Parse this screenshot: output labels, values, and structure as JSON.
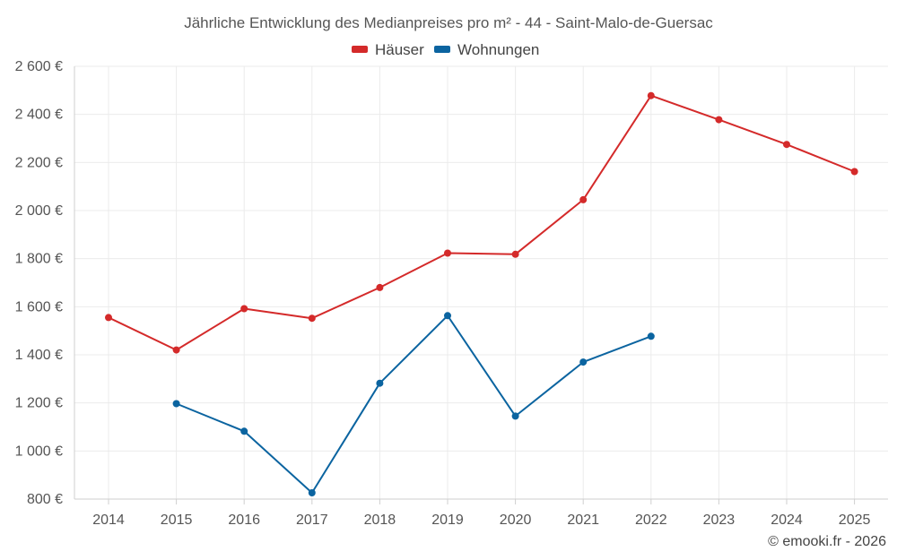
{
  "chart_data": {
    "type": "line",
    "title": "Jährliche Entwicklung des Medianpreises pro m² - 44 - Saint-Malo-de-Guersac",
    "categories": [
      "2014",
      "2015",
      "2016",
      "2017",
      "2018",
      "2019",
      "2020",
      "2021",
      "2022",
      "2023",
      "2024",
      "2025"
    ],
    "y_ticks": [
      800,
      1000,
      1200,
      1400,
      1600,
      1800,
      2000,
      2200,
      2400,
      2600
    ],
    "y_tick_labels": [
      "800 €",
      "1 000 €",
      "1 200 €",
      "1 400 €",
      "1 600 €",
      "1 800 €",
      "2 000 €",
      "2 200 €",
      "2 400 €",
      "2 600 €"
    ],
    "ylim": [
      800,
      2600
    ],
    "legend_position": "top-center",
    "grid": true,
    "series": [
      {
        "name": "Häuser",
        "color": "#d42a2a",
        "values": [
          1555,
          1420,
          1592,
          1552,
          1680,
          1823,
          1818,
          2045,
          2478,
          2378,
          2275,
          2162
        ]
      },
      {
        "name": "Wohnungen",
        "color": "#0b64a0",
        "values": [
          null,
          1197,
          1082,
          826,
          1282,
          1563,
          1145,
          1370,
          1477,
          null,
          null,
          null
        ]
      }
    ],
    "credit": "© emooki.fr - 2026"
  }
}
